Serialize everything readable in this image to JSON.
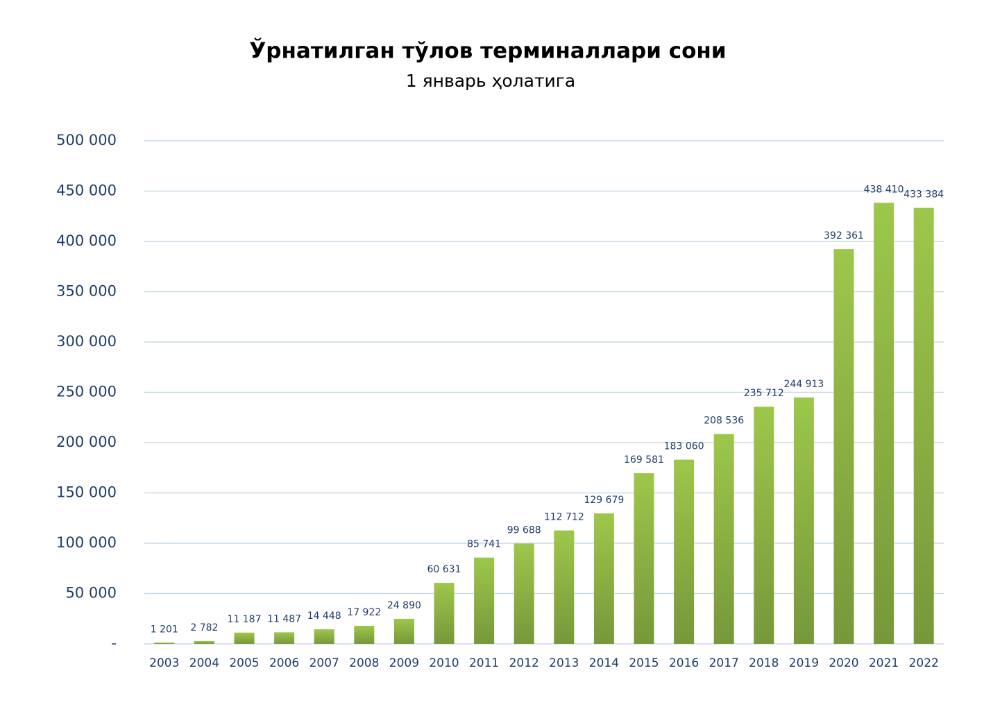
{
  "chart_data": {
    "type": "bar",
    "title": "Ўрнатилган тўлов терминаллари сони",
    "subtitle": "1 январь ҳолатига",
    "categories": [
      "2003",
      "2004",
      "2005",
      "2006",
      "2007",
      "2008",
      "2009",
      "2010",
      "2011",
      "2012",
      "2013",
      "2014",
      "2015",
      "2016",
      "2017",
      "2018",
      "2019",
      "2020",
      "2021",
      "2022"
    ],
    "values": [
      1201,
      2782,
      11187,
      11487,
      14448,
      17922,
      24890,
      60631,
      85741,
      99688,
      112712,
      129679,
      169581,
      183060,
      208536,
      235712,
      244913,
      392361,
      438410,
      433384
    ],
    "value_labels": [
      "1 201",
      "2 782",
      "11 187",
      "11 487",
      "14 448",
      "17 922",
      "24 890",
      "60 631",
      "85 741",
      "99 688",
      "112 712",
      "129 679",
      "169 581",
      "183 060",
      "208 536",
      "235 712",
      "244 913",
      "392 361",
      "438 410",
      "433 384"
    ],
    "color": "#9dc74b",
    "ylim": [
      0,
      500000
    ],
    "yticks": [
      {
        "value": 0,
        "label": "-"
      },
      {
        "value": 50000,
        "label": "50 000"
      },
      {
        "value": 100000,
        "label": "100 000"
      },
      {
        "value": 150000,
        "label": "150 000"
      },
      {
        "value": 200000,
        "label": "200 000"
      },
      {
        "value": 250000,
        "label": "250 000"
      },
      {
        "value": 300000,
        "label": "300 000"
      },
      {
        "value": 350000,
        "label": "350 000"
      },
      {
        "value": 400000,
        "label": "400 000"
      },
      {
        "value": 450000,
        "label": "450 000"
      },
      {
        "value": 500000,
        "label": "500 000"
      }
    ],
    "grid": true
  }
}
